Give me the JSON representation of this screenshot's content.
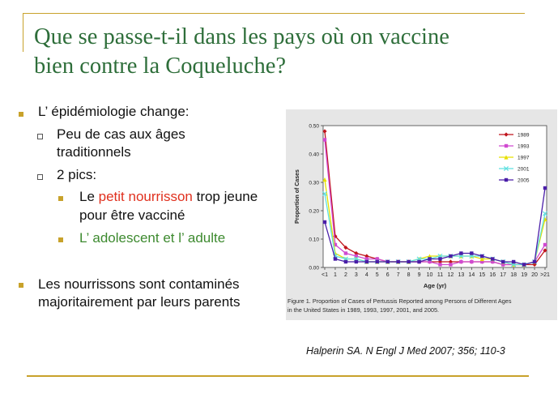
{
  "slide": {
    "title_line1": "Que se passe-t-il dans les pays où on vaccine",
    "title_line2": "bien contre la Coqueluche?",
    "bullets": {
      "b1": "L’ épidémiologie change:",
      "b1_sub1_line1": "Peu de cas aux âges",
      "b1_sub1_line2": "traditionnels",
      "b1_sub2": "2 pics:",
      "b1_sub2_a_pre": "Le ",
      "b1_sub2_a_red": "petit nourrisson",
      "b1_sub2_a_post": " trop jeune",
      "b1_sub2_a_line2": "pour être vacciné",
      "b1_sub2_b": "L’ adolescent et l’ adulte",
      "b2_line1": "Les nourrissons sont contaminés",
      "b2_line2": "majoritairement par leurs parents"
    },
    "citation": "Halperin SA. N Engl J Med 2007; 356; 110-3",
    "accent_color": "#c8a22b",
    "title_color": "#2e6e3a"
  },
  "chart_data": {
    "type": "line",
    "xlabel": "Age (yr)",
    "ylabel": "Proportion of Cases",
    "ylim": [
      0,
      0.5
    ],
    "yticks": [
      "0.00",
      "0.10",
      "0.20",
      "0.30",
      "0.40",
      "0.50"
    ],
    "categories": [
      "<1",
      "1",
      "2",
      "3",
      "4",
      "5",
      "6",
      "7",
      "8",
      "9",
      "10",
      "11",
      "12",
      "13",
      "14",
      "15",
      "16",
      "17",
      "18",
      "19",
      "20",
      ">21"
    ],
    "caption_line1": "Figure 1. Proportion of Cases of Pertussis Reported among Persons of Different Ages",
    "caption_line2": "in the United States in 1989, 1993, 1997, 2001, and 2005.",
    "legend_position": "top-right",
    "series": [
      {
        "name": "1989",
        "color": "#c0141c",
        "marker": "diamond",
        "values": [
          0.48,
          0.11,
          0.07,
          0.05,
          0.04,
          0.03,
          0.02,
          0.02,
          0.02,
          0.02,
          0.02,
          0.02,
          0.02,
          0.02,
          0.02,
          0.02,
          0.02,
          0.01,
          0.01,
          0.01,
          0.01,
          0.06
        ]
      },
      {
        "name": "1993",
        "color": "#d04ad0",
        "marker": "square",
        "values": [
          0.45,
          0.08,
          0.05,
          0.04,
          0.03,
          0.03,
          0.02,
          0.02,
          0.02,
          0.02,
          0.02,
          0.01,
          0.01,
          0.02,
          0.02,
          0.02,
          0.02,
          0.01,
          0.01,
          0.01,
          0.02,
          0.08
        ]
      },
      {
        "name": "1997",
        "color": "#e8e000",
        "marker": "triangle",
        "values": [
          0.31,
          0.05,
          0.03,
          0.03,
          0.02,
          0.02,
          0.02,
          0.02,
          0.02,
          0.03,
          0.04,
          0.04,
          0.04,
          0.04,
          0.04,
          0.03,
          0.03,
          0.02,
          0.01,
          0.01,
          0.02,
          0.17
        ]
      },
      {
        "name": "2001",
        "color": "#5fe0e0",
        "marker": "x",
        "values": [
          0.26,
          0.04,
          0.03,
          0.03,
          0.02,
          0.02,
          0.02,
          0.02,
          0.02,
          0.03,
          0.03,
          0.04,
          0.04,
          0.04,
          0.04,
          0.04,
          0.03,
          0.02,
          0.01,
          0.01,
          0.02,
          0.19
        ]
      },
      {
        "name": "2005",
        "color": "#4a1ea8",
        "marker": "square",
        "values": [
          0.16,
          0.03,
          0.02,
          0.02,
          0.02,
          0.02,
          0.02,
          0.02,
          0.02,
          0.02,
          0.03,
          0.03,
          0.04,
          0.05,
          0.05,
          0.04,
          0.03,
          0.02,
          0.02,
          0.01,
          0.02,
          0.28
        ]
      }
    ]
  }
}
